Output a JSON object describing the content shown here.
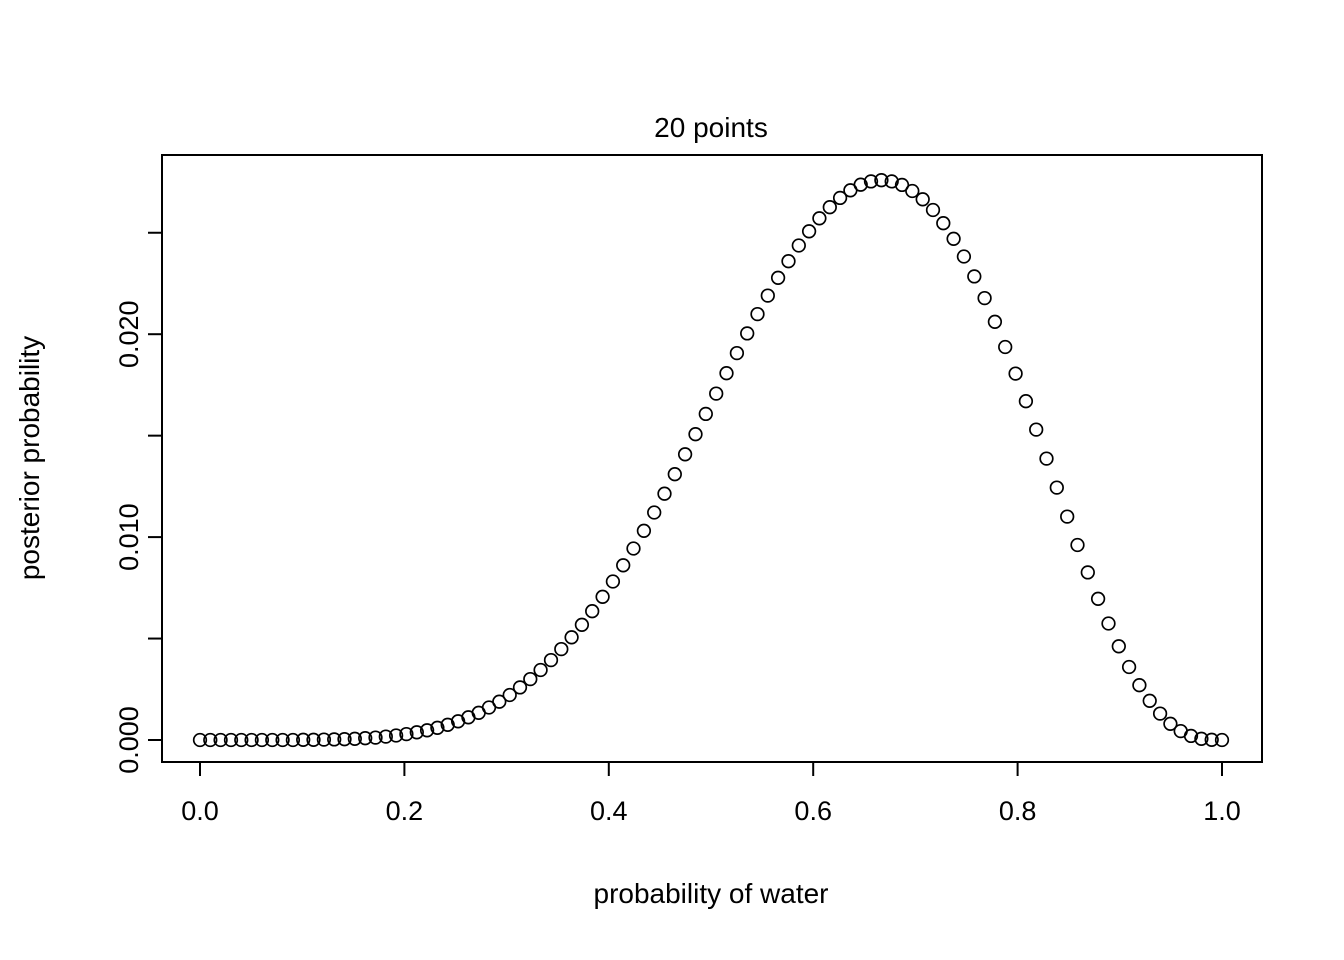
{
  "chart_data": {
    "type": "scatter",
    "title": "20 points",
    "xlabel": "probability of water",
    "ylabel": "posterior probability",
    "marker": "open-circle",
    "grid": false,
    "legend": "none",
    "xlim": [
      -0.04,
      1.04
    ],
    "ylim": [
      -0.0011,
      0.0287
    ],
    "x_axis": {
      "ticks": [
        0.0,
        0.2,
        0.4,
        0.6,
        0.8,
        1.0
      ],
      "tick_labels": [
        "0.0",
        "0.2",
        "0.4",
        "0.6",
        "0.8",
        "1.0"
      ]
    },
    "y_axis": {
      "ticks": [
        0.0,
        0.01,
        0.02
      ],
      "tick_labels": [
        "0.000",
        "0.010",
        "0.020"
      ],
      "minor_ticks": [
        0.005,
        0.015,
        0.025
      ]
    },
    "x": [
      0,
      0.0101,
      0.0202,
      0.0303,
      0.0404,
      0.0505,
      0.0606,
      0.0707,
      0.0808,
      0.0909,
      0.101,
      0.1111,
      0.1212,
      0.1313,
      0.1414,
      0.1515,
      0.1616,
      0.1717,
      0.1818,
      0.1919,
      0.202,
      0.2121,
      0.2222,
      0.2323,
      0.2424,
      0.2525,
      0.2626,
      0.2727,
      0.2828,
      0.2929,
      0.303,
      0.3131,
      0.3232,
      0.3333,
      0.3434,
      0.3535,
      0.3636,
      0.3737,
      0.3838,
      0.3939,
      0.404,
      0.4141,
      0.4242,
      0.4343,
      0.4444,
      0.4545,
      0.4646,
      0.4747,
      0.4848,
      0.4949,
      0.5051,
      0.5152,
      0.5253,
      0.5354,
      0.5455,
      0.5556,
      0.5657,
      0.5758,
      0.5859,
      0.596,
      0.6061,
      0.6162,
      0.6263,
      0.6364,
      0.6465,
      0.6566,
      0.6667,
      0.6768,
      0.6869,
      0.697,
      0.7071,
      0.7172,
      0.7273,
      0.7374,
      0.7475,
      0.7576,
      0.7677,
      0.7778,
      0.7879,
      0.798,
      0.8081,
      0.8182,
      0.8283,
      0.8384,
      0.8485,
      0.8586,
      0.8687,
      0.8788,
      0.8889,
      0.899,
      0.9091,
      0.9192,
      0.9293,
      0.9394,
      0.9495,
      0.9596,
      0.9697,
      0.9798,
      0.9899,
      1
    ],
    "y": [
      0,
      0,
      0,
      0,
      0,
      0,
      0,
      0,
      0,
      0,
      1e-05,
      1e-05,
      2e-05,
      3e-05,
      4e-05,
      6e-05,
      9e-05,
      0.00012,
      0.00017,
      0.00022,
      0.00029,
      0.00038,
      0.00048,
      0.0006,
      0.00075,
      0.00092,
      0.00112,
      0.00134,
      0.0016,
      0.00189,
      0.00222,
      0.00259,
      0.003,
      0.00345,
      0.00394,
      0.00448,
      0.00506,
      0.00568,
      0.00635,
      0.00706,
      0.00781,
      0.00861,
      0.00944,
      0.01031,
      0.01121,
      0.01214,
      0.0131,
      0.01408,
      0.01507,
      0.01607,
      0.01707,
      0.01808,
      0.01907,
      0.02004,
      0.02099,
      0.0219,
      0.02278,
      0.0236,
      0.02437,
      0.02507,
      0.02571,
      0.02626,
      0.02672,
      0.02709,
      0.02737,
      0.02753,
      0.02759,
      0.02753,
      0.02736,
      0.02706,
      0.02665,
      0.02612,
      0.02547,
      0.0247,
      0.02383,
      0.02285,
      0.02178,
      0.02061,
      0.01937,
      0.01806,
      0.0167,
      0.0153,
      0.01387,
      0.01244,
      0.01101,
      0.00961,
      0.00826,
      0.00696,
      0.00574,
      0.00462,
      0.0036,
      0.0027,
      0.00193,
      0.0013,
      0.0008,
      0.00044,
      0.0002,
      6e-05,
      1e-05,
      0
    ]
  }
}
